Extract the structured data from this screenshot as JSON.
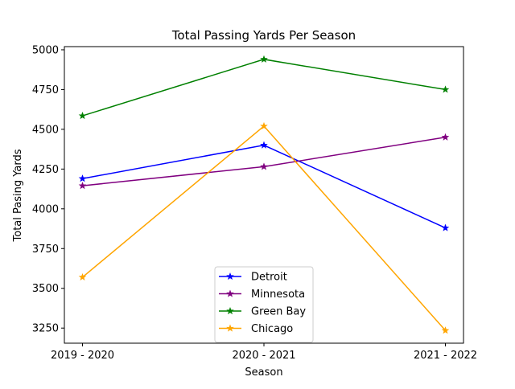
{
  "chart_data": {
    "type": "line",
    "title": "Total Passing Yards Per Season",
    "xlabel": "Season",
    "ylabel": "Total Pasing Yards",
    "categories": [
      "2019 - 2020",
      "2020 - 2021",
      "2021 - 2022"
    ],
    "ylim": [
      3155,
      5020
    ],
    "yticks": [
      3250,
      3500,
      3750,
      4000,
      4250,
      4500,
      4750,
      5000
    ],
    "marker": "star",
    "grid": false,
    "legend_position": "lower-center",
    "series": [
      {
        "name": "Detroit",
        "color": "#0000ff",
        "values": [
          4190,
          4400,
          3880
        ]
      },
      {
        "name": "Minnesota",
        "color": "#800080",
        "values": [
          4145,
          4265,
          4450
        ]
      },
      {
        "name": "Green Bay",
        "color": "#008000",
        "values": [
          4585,
          4940,
          4750
        ]
      },
      {
        "name": "Chicago",
        "color": "#ffa500",
        "values": [
          3570,
          4520,
          3235
        ]
      }
    ]
  }
}
